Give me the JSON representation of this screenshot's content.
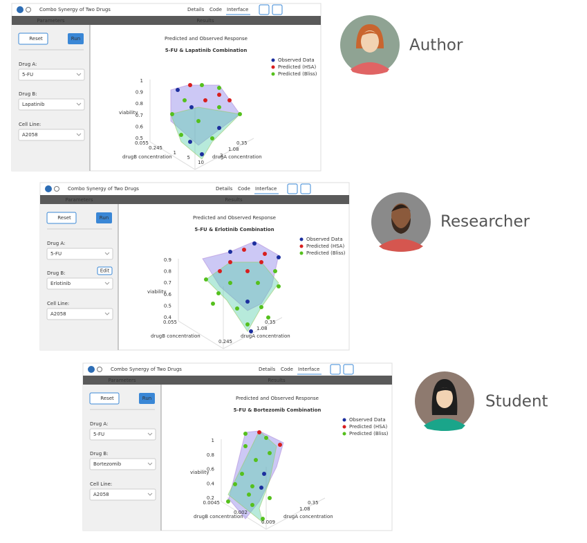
{
  "panels": [
    {
      "app_title": "Combo Synergy of Two Drugs",
      "tabs": [
        "Details",
        "Code",
        "Interface"
      ],
      "parameters_header": "Parameters",
      "results_header": "Results",
      "reset": "Reset",
      "run": "Run",
      "drug_a_label": "Drug A:",
      "drug_a": "5-FU",
      "drug_b_label": "Drug B:",
      "drug_b": "Lapatinib",
      "cell_line_label": "Cell Line:",
      "cell_line": "A2058",
      "chart_title": "Predicted and Observed Response",
      "chart_subtitle": "5-FU & Lapatinib Combination",
      "legend": [
        "Observed Data",
        "Predicted (HSA)",
        "Predicted (Bliss)"
      ],
      "z_axis_label": "viability",
      "b_axis_label": "drugB concentration",
      "a_axis_label": "drugA concentration",
      "z_ticks": [
        "1",
        "0.9",
        "0.8",
        "0.7",
        "0.6",
        "0.5"
      ],
      "b_ticks": [
        "0.055",
        "0.245",
        "1",
        "5",
        "10"
      ],
      "a_ticks": [
        "0.35",
        "1.08",
        "3"
      ]
    },
    {
      "app_title": "Combo Synergy of Two Drugs",
      "tabs": [
        "Details",
        "Code",
        "Interface"
      ],
      "parameters_header": "Parameters",
      "results_header": "Results",
      "reset": "Reset",
      "run": "Run",
      "edit": "Edit",
      "drug_a_label": "Drug A:",
      "drug_a": "5-FU",
      "drug_b_label": "Drug B:",
      "drug_b": "Erlotinib",
      "cell_line_label": "Cell Line:",
      "cell_line": "A2058",
      "chart_title": "Predicted and Observed Response",
      "chart_subtitle": "5-FU & Erlotinib Combination",
      "legend": [
        "Observed Data",
        "Predicted (HSA)",
        "Predicted (Bliss)"
      ],
      "z_axis_label": "viability",
      "b_axis_label": "drugB concentration",
      "a_axis_label": "drugA concentration",
      "z_ticks": [
        "0.9",
        "0.8",
        "0.7",
        "0.6",
        "0.5",
        "0.4"
      ],
      "b_ticks": [
        "0.055",
        "0.245"
      ],
      "a_ticks": [
        "0.35",
        "1.08"
      ]
    },
    {
      "app_title": "Combo Synergy of Two Drugs",
      "tabs": [
        "Details",
        "Code",
        "Interface"
      ],
      "parameters_header": "Parameters",
      "results_header": "Results",
      "reset": "Reset",
      "run": "Run",
      "drug_a_label": "Drug A:",
      "drug_a": "5-FU",
      "drug_b_label": "Drug B:",
      "drug_b": "Bortezomib",
      "cell_line_label": "Cell Line:",
      "cell_line": "A2058",
      "chart_title": "Predicted and Observed Response",
      "chart_subtitle": "5-FU & Bortezomib Combination",
      "legend": [
        "Observed Data",
        "Predicted (HSA)",
        "Predicted (Bliss)"
      ],
      "z_axis_label": "viability",
      "b_axis_label": "drugB concentration",
      "a_axis_label": "drugA concentration",
      "z_ticks": [
        "1",
        "0.8",
        "0.6",
        "0.4",
        "0.2"
      ],
      "b_ticks": [
        "0.0045",
        "0.002",
        "0.009"
      ],
      "a_ticks": [
        "0.35",
        "1.08"
      ]
    }
  ],
  "personas": [
    "Author",
    "Researcher",
    "Student"
  ]
}
